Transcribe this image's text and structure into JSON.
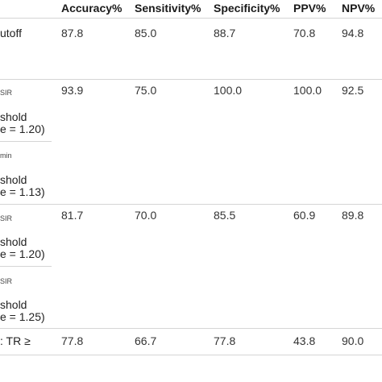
{
  "header": {
    "accuracy": "Accuracy%",
    "sensitivity": "Sensitivity%",
    "specificity": "Specificity%",
    "ppv": "PPV%",
    "npv": "NPV%"
  },
  "rows": [
    {
      "label": "utoff",
      "values": [
        "87.8",
        "85.0",
        "88.7",
        "70.8",
        "94.8"
      ]
    },
    {
      "sub1": {
        "tag": "SIR",
        "line1": "shold",
        "line2": "e = 1.20)"
      },
      "sub2": {
        "tag": "min",
        "line1": "shold",
        "line2": "e = 1.13)"
      },
      "values": [
        "93.9",
        "75.0",
        "100.0",
        "100.0",
        "92.5"
      ]
    },
    {
      "sub1": {
        "tag": "SIR",
        "line1": "shold",
        "line2": "e = 1.20)"
      },
      "sub2": {
        "tag": "SIR",
        "line1": "shold",
        "line2": "e = 1.25)"
      },
      "values": [
        "81.7",
        "70.0",
        "85.5",
        "60.9",
        "89.8"
      ]
    },
    {
      "label": ": TR ≥",
      "values": [
        "77.8",
        "66.7",
        "77.8",
        "43.8",
        "90.0"
      ]
    }
  ]
}
